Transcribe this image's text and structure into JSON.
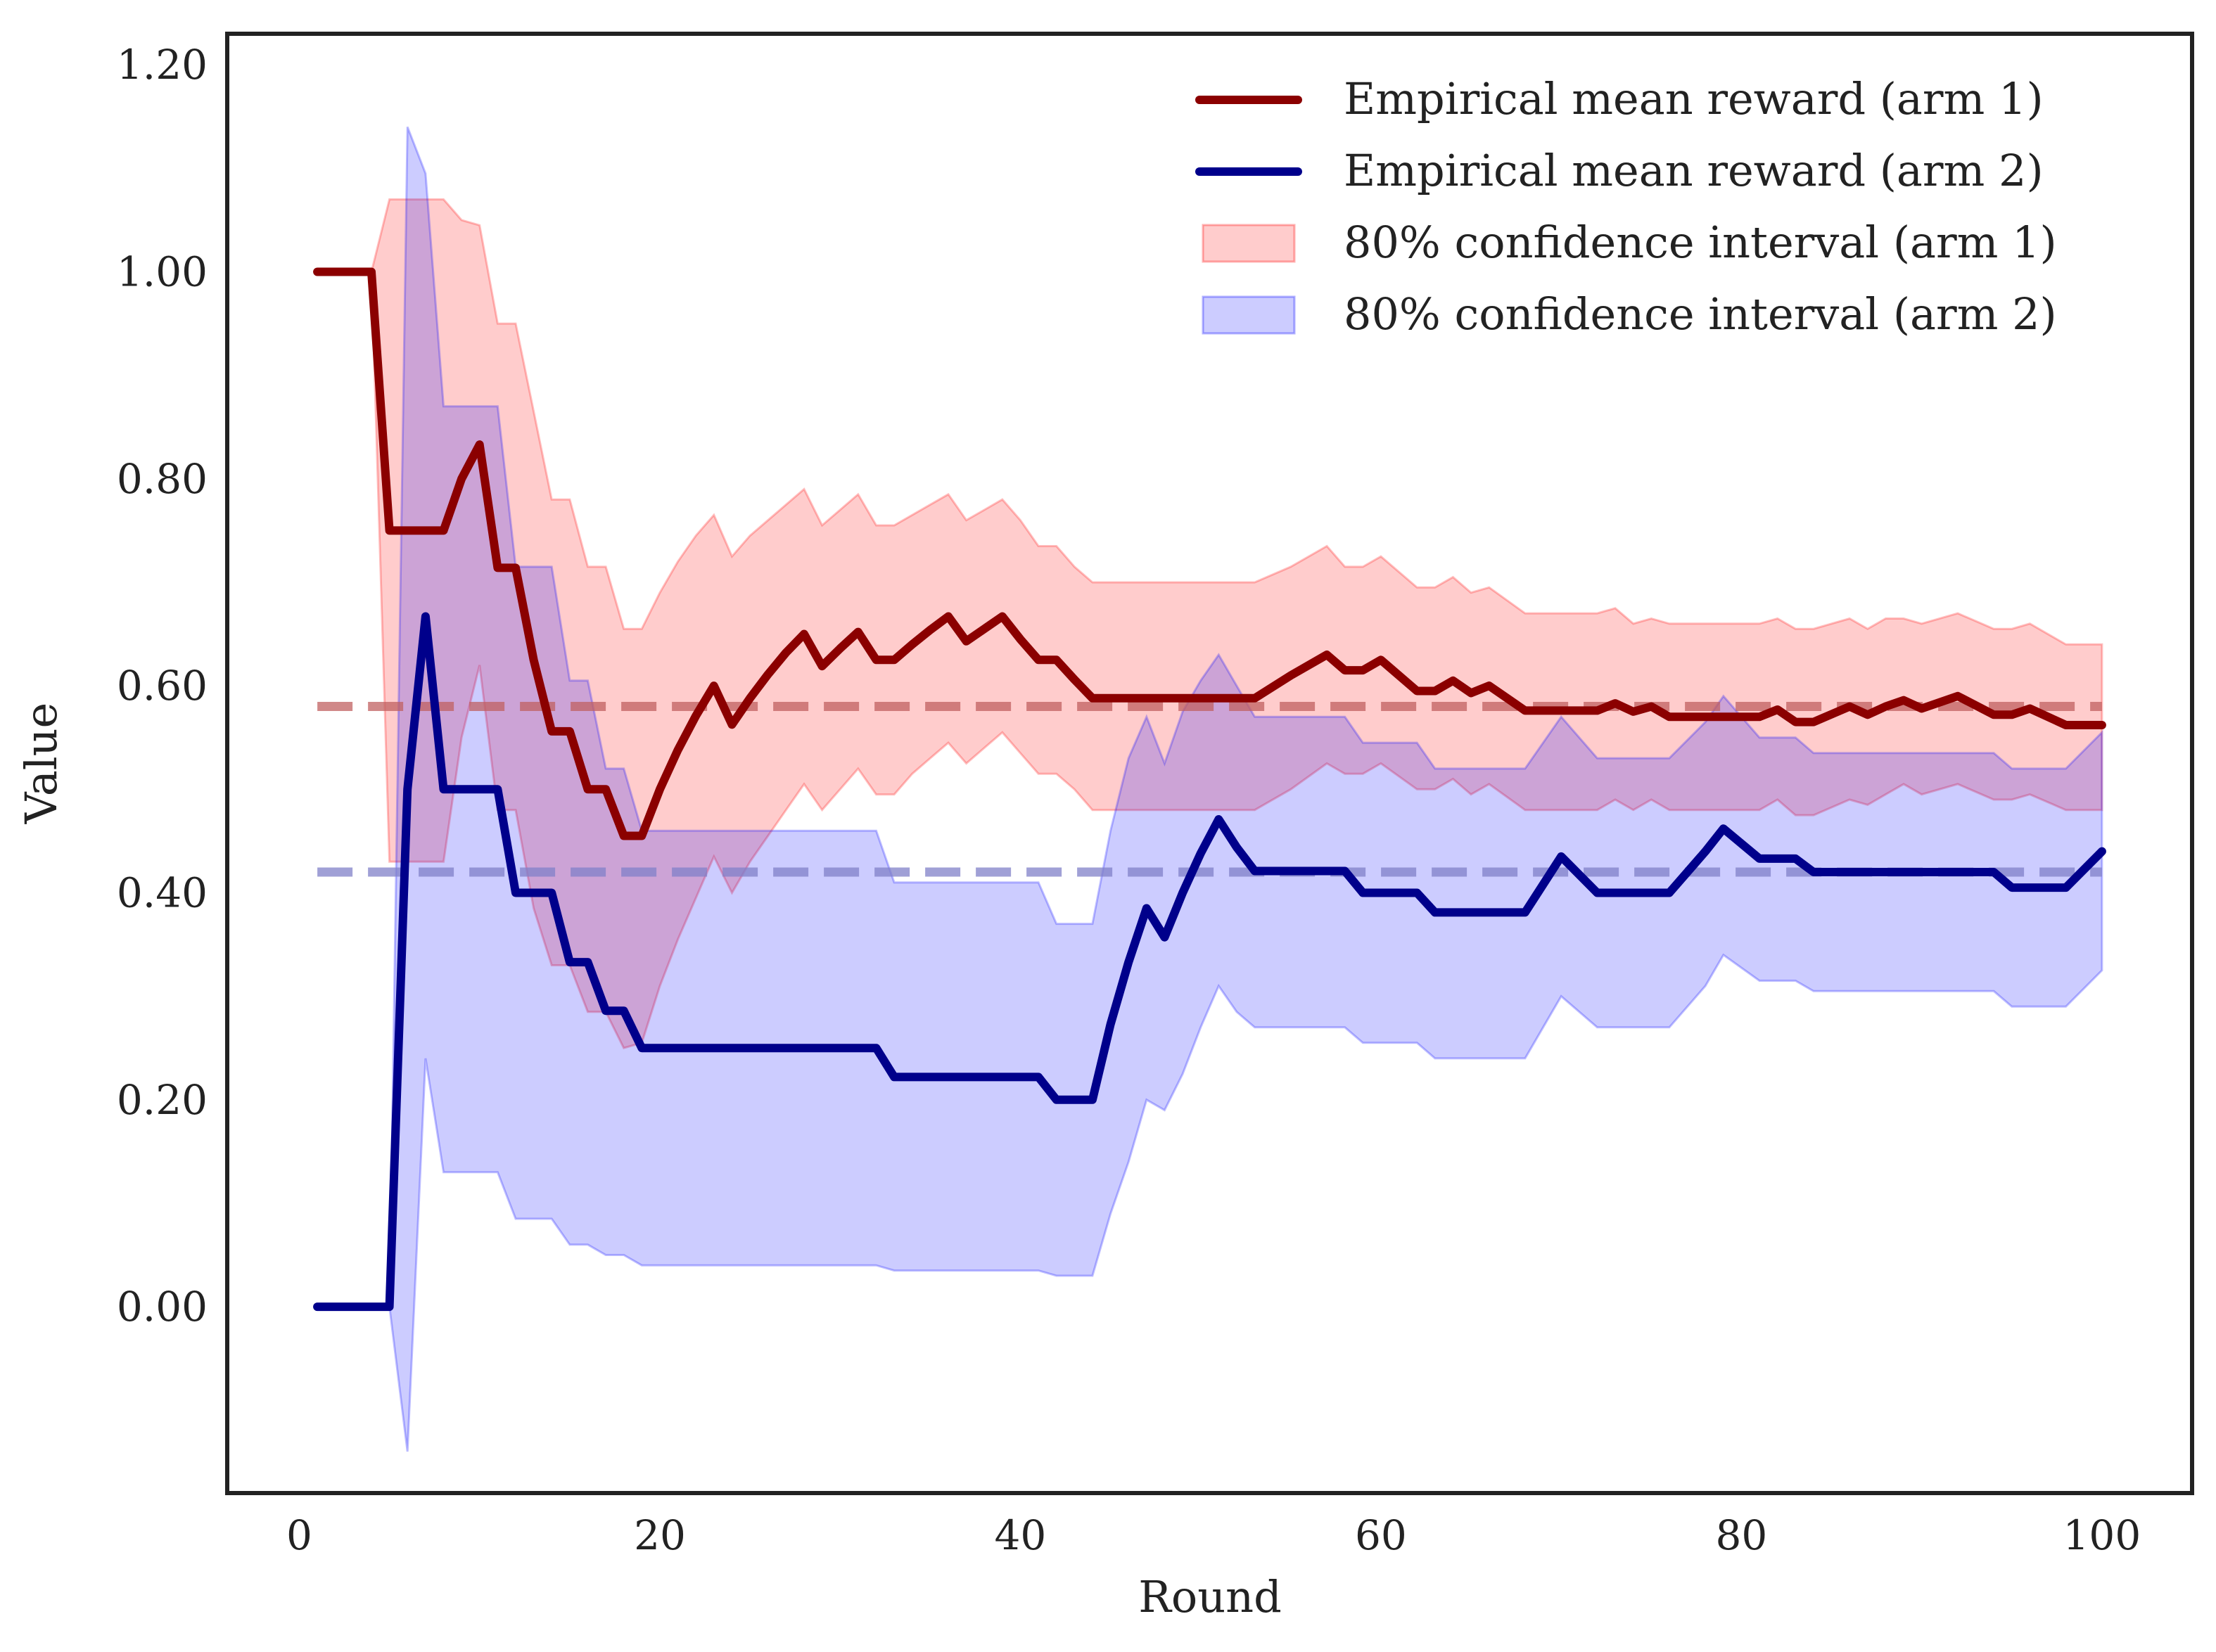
{
  "chart_data": {
    "type": "line",
    "title": "",
    "xlabel": "Round",
    "ylabel": "Value",
    "xlim": [
      -4,
      105
    ],
    "ylim": [
      -0.18,
      1.23
    ],
    "xticks": [
      0,
      20,
      40,
      60,
      80,
      100
    ],
    "xtick_labels": [
      "0",
      "20",
      "40",
      "60",
      "80",
      "100"
    ],
    "yticks": [
      0.0,
      0.2,
      0.4,
      0.6,
      0.8,
      1.0,
      1.2
    ],
    "ytick_labels": [
      "0.00",
      "0.20",
      "0.40",
      "0.60",
      "0.80",
      "1.00",
      "1.20"
    ],
    "grid": false,
    "legend_position": "top-right",
    "legend": [
      {
        "label": "Empirical mean reward (arm 1)",
        "kind": "line",
        "color": "#8b0000"
      },
      {
        "label": "Empirical mean reward (arm 2)",
        "kind": "line",
        "color": "#00008b"
      },
      {
        "label": "80% confidence interval (arm 1)",
        "kind": "patch",
        "color": "#ff0000"
      },
      {
        "label": "80% confidence interval (arm 2)",
        "kind": "patch",
        "color": "#0000ff"
      }
    ],
    "reference_lines": [
      {
        "name": "true mean (arm 1)",
        "y": 0.58,
        "x_range": [
          1,
          100
        ],
        "color": "#c06060",
        "style": "dashed"
      },
      {
        "name": "true mean (arm 2)",
        "y": 0.42,
        "x_range": [
          1,
          100
        ],
        "color": "#8080c8",
        "style": "dashed"
      }
    ],
    "series": [
      {
        "name": "Empirical mean reward (arm 1)",
        "color": "#8b0000",
        "x": [
          1,
          4,
          5,
          8,
          9,
          10,
          11,
          12,
          13,
          14,
          15,
          16,
          17,
          18,
          19,
          20,
          21,
          22,
          23,
          24,
          25,
          26,
          27,
          28,
          29,
          30,
          31,
          32,
          33,
          34,
          35,
          36,
          37,
          38,
          39,
          40,
          41,
          42,
          43,
          44,
          45,
          50,
          53,
          55,
          57,
          58,
          59,
          60,
          62,
          63,
          64,
          65,
          66,
          68,
          72,
          73,
          74,
          75,
          76,
          80,
          81,
          82,
          83,
          84,
          86,
          87,
          88,
          89,
          90,
          92,
          94,
          95,
          96,
          98,
          100
        ],
        "y": [
          1.0,
          1.0,
          0.75,
          0.75,
          0.8,
          0.833,
          0.714,
          0.714,
          0.625,
          0.556,
          0.556,
          0.5,
          0.5,
          0.455,
          0.455,
          0.5,
          0.538,
          0.571,
          0.6,
          0.5625,
          0.588,
          0.611,
          0.632,
          0.65,
          0.619,
          0.636,
          0.652,
          0.625,
          0.625,
          0.64,
          0.654,
          0.667,
          0.643,
          0.655,
          0.667,
          0.645,
          0.625,
          0.625,
          0.606,
          0.588,
          0.588,
          0.588,
          0.588,
          0.61,
          0.63,
          0.615,
          0.615,
          0.625,
          0.595,
          0.595,
          0.605,
          0.593,
          0.6,
          0.576,
          0.576,
          0.583,
          0.575,
          0.58,
          0.57,
          0.57,
          0.57,
          0.577,
          0.565,
          0.565,
          0.58,
          0.572,
          0.58,
          0.586,
          0.578,
          0.59,
          0.572,
          0.572,
          0.578,
          0.562,
          0.562
        ]
      },
      {
        "name": "Empirical mean reward (arm 2)",
        "color": "#00008b",
        "x": [
          1,
          5,
          6,
          7,
          8,
          11,
          12,
          14,
          15,
          16,
          17,
          18,
          19,
          32,
          33,
          41,
          42,
          44,
          45,
          46,
          47,
          48,
          49,
          50,
          51,
          52,
          53,
          58,
          59,
          62,
          63,
          68,
          70,
          72,
          76,
          78,
          79,
          81,
          83,
          84,
          90,
          94,
          95,
          98,
          100
        ],
        "y": [
          0.0,
          0.0,
          0.5,
          0.667,
          0.5,
          0.5,
          0.4,
          0.4,
          0.333,
          0.333,
          0.286,
          0.286,
          0.25,
          0.25,
          0.222,
          0.222,
          0.2,
          0.2,
          0.273,
          0.333,
          0.385,
          0.357,
          0.4,
          0.438,
          0.471,
          0.444,
          0.421,
          0.421,
          0.4,
          0.4,
          0.381,
          0.381,
          0.435,
          0.4,
          0.4,
          0.44,
          0.462,
          0.433,
          0.433,
          0.42,
          0.42,
          0.42,
          0.405,
          0.405,
          0.44
        ]
      }
    ],
    "bands": [
      {
        "name": "80% confidence interval (arm 1)",
        "color": "#ff0000",
        "x": [
          1,
          4,
          5,
          8,
          9,
          10,
          11,
          12,
          13,
          14,
          15,
          16,
          17,
          18,
          19,
          20,
          21,
          22,
          23,
          24,
          25,
          26,
          27,
          28,
          29,
          30,
          31,
          32,
          33,
          34,
          35,
          36,
          37,
          38,
          39,
          40,
          41,
          42,
          43,
          44,
          45,
          50,
          53,
          55,
          57,
          58,
          59,
          60,
          62,
          63,
          64,
          65,
          66,
          68,
          72,
          73,
          74,
          75,
          76,
          80,
          81,
          82,
          83,
          84,
          86,
          87,
          88,
          89,
          90,
          92,
          94,
          95,
          96,
          98,
          100
        ],
        "upper": [
          1.0,
          1.0,
          1.07,
          1.07,
          1.05,
          1.045,
          0.95,
          0.95,
          0.865,
          0.78,
          0.78,
          0.715,
          0.715,
          0.655,
          0.655,
          0.69,
          0.72,
          0.745,
          0.765,
          0.725,
          0.745,
          0.76,
          0.775,
          0.79,
          0.755,
          0.77,
          0.785,
          0.755,
          0.755,
          0.765,
          0.775,
          0.785,
          0.76,
          0.77,
          0.78,
          0.76,
          0.735,
          0.735,
          0.715,
          0.7,
          0.7,
          0.7,
          0.7,
          0.715,
          0.735,
          0.715,
          0.715,
          0.725,
          0.695,
          0.695,
          0.705,
          0.69,
          0.695,
          0.67,
          0.67,
          0.675,
          0.66,
          0.665,
          0.66,
          0.66,
          0.66,
          0.665,
          0.655,
          0.655,
          0.665,
          0.655,
          0.665,
          0.665,
          0.66,
          0.67,
          0.655,
          0.655,
          0.66,
          0.64,
          0.64
        ],
        "lower": [
          1.0,
          1.0,
          0.43,
          0.43,
          0.55,
          0.62,
          0.48,
          0.48,
          0.385,
          0.33,
          0.33,
          0.285,
          0.285,
          0.25,
          0.255,
          0.31,
          0.355,
          0.395,
          0.435,
          0.4,
          0.43,
          0.455,
          0.48,
          0.505,
          0.48,
          0.5,
          0.52,
          0.495,
          0.495,
          0.515,
          0.53,
          0.545,
          0.525,
          0.54,
          0.555,
          0.535,
          0.515,
          0.515,
          0.5,
          0.48,
          0.48,
          0.48,
          0.48,
          0.5,
          0.525,
          0.515,
          0.515,
          0.525,
          0.5,
          0.5,
          0.51,
          0.495,
          0.505,
          0.48,
          0.48,
          0.49,
          0.48,
          0.49,
          0.48,
          0.48,
          0.48,
          0.49,
          0.475,
          0.475,
          0.49,
          0.485,
          0.495,
          0.505,
          0.495,
          0.505,
          0.49,
          0.49,
          0.495,
          0.48,
          0.48
        ]
      },
      {
        "name": "80% confidence interval (arm 2)",
        "color": "#0000ff",
        "x": [
          1,
          5,
          6,
          7,
          8,
          11,
          12,
          14,
          15,
          16,
          17,
          18,
          19,
          32,
          33,
          41,
          42,
          44,
          45,
          46,
          47,
          48,
          49,
          50,
          51,
          52,
          53,
          58,
          59,
          62,
          63,
          68,
          70,
          72,
          76,
          78,
          79,
          81,
          83,
          84,
          90,
          94,
          95,
          98,
          100
        ],
        "upper": [
          0.0,
          0.0,
          1.14,
          1.095,
          0.87,
          0.87,
          0.715,
          0.715,
          0.605,
          0.605,
          0.52,
          0.52,
          0.46,
          0.46,
          0.41,
          0.41,
          0.37,
          0.37,
          0.46,
          0.53,
          0.57,
          0.525,
          0.575,
          0.605,
          0.63,
          0.6,
          0.57,
          0.57,
          0.545,
          0.545,
          0.52,
          0.52,
          0.57,
          0.53,
          0.53,
          0.565,
          0.59,
          0.55,
          0.55,
          0.535,
          0.535,
          0.535,
          0.52,
          0.52,
          0.555
        ],
        "lower": [
          0.0,
          0.0,
          -0.14,
          0.24,
          0.13,
          0.13,
          0.085,
          0.085,
          0.06,
          0.06,
          0.05,
          0.05,
          0.04,
          0.04,
          0.035,
          0.035,
          0.03,
          0.03,
          0.09,
          0.14,
          0.2,
          0.19,
          0.225,
          0.27,
          0.31,
          0.285,
          0.27,
          0.27,
          0.255,
          0.255,
          0.24,
          0.24,
          0.3,
          0.27,
          0.27,
          0.31,
          0.34,
          0.315,
          0.315,
          0.305,
          0.305,
          0.305,
          0.29,
          0.29,
          0.325
        ]
      }
    ]
  }
}
